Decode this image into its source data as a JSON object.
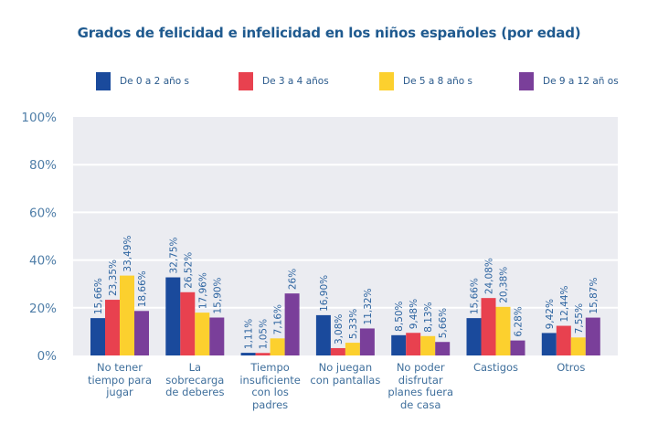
{
  "chart_data": {
    "type": "bar",
    "title": "Grados de felicidad e infelicidad en los niños españoles (por edad)",
    "xlabel": "",
    "ylabel": "",
    "ylim": [
      0,
      100
    ],
    "yticks": [
      "0%",
      "20%",
      "40%",
      "60%",
      "80%",
      "100%"
    ],
    "ytick_values": [
      0,
      20,
      40,
      60,
      80,
      100
    ],
    "grid": true,
    "legend_position": "top",
    "categories": [
      "No tener\ntiempo para\njugar",
      "La\nsobrecarga\nde deberes",
      "Tiempo\ninsuficiente\ncon los\npadres",
      "No juegan\ncon pantallas",
      "No poder\ndisfrutar\nplanes fuera\nde casa",
      "Castigos",
      "Otros"
    ],
    "series": [
      {
        "name": "De 0 a 2 año s",
        "color": "#1a4a9c",
        "values": [
          15.66,
          32.75,
          1.11,
          16.9,
          8.5,
          15.66,
          9.42
        ],
        "labels": [
          "15,66%",
          "32,75%",
          "1,11%",
          "16,90%",
          "8,50%",
          "15,66%",
          "9,42%"
        ]
      },
      {
        "name": "De 3 a 4 años",
        "color": "#e8414f",
        "values": [
          23.35,
          26.52,
          1.05,
          3.08,
          9.48,
          24.08,
          12.44
        ],
        "labels": [
          "23,35%",
          "26,52%",
          "1,05%",
          "3,08%",
          "9,48%",
          "24,08%",
          "12,44%"
        ]
      },
      {
        "name": "De 5 a 8 año s",
        "color": "#fcd02e",
        "values": [
          33.49,
          17.96,
          7.16,
          5.33,
          8.13,
          20.38,
          7.55
        ],
        "labels": [
          "33,49%",
          "17,96%",
          "7,16%",
          "5,33%",
          "8,13%",
          "20,38%",
          "7,55%"
        ]
      },
      {
        "name": "De 9 a 12 añ os",
        "color": "#7a3f9a",
        "values": [
          18.66,
          15.9,
          26,
          11.32,
          5.66,
          6.28,
          15.87
        ],
        "labels": [
          "18,66%",
          "15,90%",
          "26%",
          "11,32%",
          "5,66%",
          "6,28%",
          "15,87%"
        ]
      }
    ]
  },
  "colors": {
    "title": "#1f5a8f",
    "plot_background": "#ebecf1",
    "gridline": "#ffffff"
  }
}
